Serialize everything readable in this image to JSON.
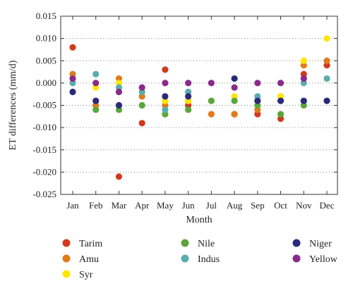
{
  "chart_data": {
    "type": "scatter",
    "title": "",
    "xlabel": "Month",
    "ylabel": "ET differences (mm/d)",
    "categories": [
      "Jan",
      "Feb",
      "Mar",
      "Apr",
      "May",
      "Jun",
      "Jul",
      "Aug",
      "Sep",
      "Oct",
      "Nov",
      "Dec"
    ],
    "ylim": [
      -0.025,
      0.015
    ],
    "yticks": [
      "0.015",
      "0.010",
      "0.005",
      "0.000",
      "-0.005",
      "-0.010",
      "-0.015",
      "-0.020",
      "-0.025"
    ],
    "ytick_values": [
      0.015,
      0.01,
      0.005,
      0.0,
      -0.005,
      -0.01,
      -0.015,
      -0.02,
      -0.025
    ],
    "grid": "horizontal dotted",
    "legend_position": "bottom",
    "series": [
      {
        "name": "Tarim",
        "color": "#d13a1f",
        "values": [
          0.008,
          -0.005,
          -0.021,
          -0.009,
          0.003,
          -0.005,
          null,
          -0.007,
          -0.007,
          -0.008,
          0.002,
          0.004
        ]
      },
      {
        "name": "Amu",
        "color": "#e07b1a",
        "values": [
          0.002,
          -0.005,
          0.001,
          -0.003,
          -0.005,
          -0.004,
          -0.007,
          -0.007,
          -0.006,
          -0.003,
          0.004,
          0.005
        ]
      },
      {
        "name": "Syr",
        "color": "#ffe600",
        "values": [
          0.001,
          -0.001,
          0.0,
          -0.002,
          -0.004,
          -0.004,
          null,
          -0.003,
          -0.004,
          -0.003,
          0.005,
          0.01
        ]
      },
      {
        "name": "Nile",
        "color": "#5aa63a",
        "values": [
          null,
          -0.006,
          -0.006,
          -0.005,
          -0.007,
          -0.006,
          -0.004,
          -0.004,
          -0.005,
          -0.007,
          -0.005,
          null
        ]
      },
      {
        "name": "Indus",
        "color": "#5aadad",
        "values": [
          0.0,
          0.002,
          -0.001,
          -0.002,
          -0.006,
          -0.002,
          null,
          null,
          -0.003,
          null,
          0.0,
          0.001
        ]
      },
      {
        "name": "Niger",
        "color": "#2a2a7a",
        "values": [
          -0.002,
          -0.004,
          -0.005,
          null,
          -0.003,
          -0.003,
          null,
          0.001,
          -0.004,
          -0.004,
          -0.004,
          -0.004
        ]
      },
      {
        "name": "Yellow",
        "color": "#8a2a8a",
        "values": [
          0.001,
          0.0,
          -0.002,
          -0.001,
          0.0,
          0.0,
          0.0,
          -0.001,
          0.0,
          0.0,
          0.001,
          null
        ]
      }
    ],
    "legend": [
      {
        "name": "Tarim",
        "color": "#d13a1f"
      },
      {
        "name": "Amu",
        "color": "#e07b1a"
      },
      {
        "name": "Syr",
        "color": "#ffe600"
      },
      {
        "name": "Nile",
        "color": "#5aa63a"
      },
      {
        "name": "Indus",
        "color": "#5aadad"
      },
      {
        "name": "Niger",
        "color": "#2a2a7a"
      },
      {
        "name": "Yellow",
        "color": "#8a2a8a"
      }
    ]
  }
}
